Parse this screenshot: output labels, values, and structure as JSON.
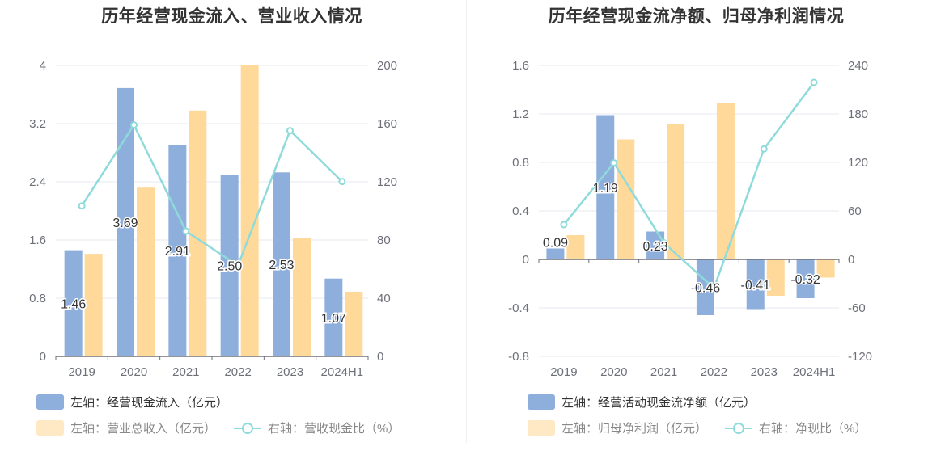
{
  "chart_data": [
    {
      "type": "bar",
      "title": "历年经营现金流入、营业收入情况",
      "categories": [
        "2019",
        "2020",
        "2021",
        "2022",
        "2023",
        "2024H1"
      ],
      "left_axis": {
        "ylim": [
          0,
          4
        ],
        "ticks": [
          "0",
          "0.8",
          "1.6",
          "2.4",
          "3.2",
          "4"
        ]
      },
      "right_axis": {
        "ylim": [
          0,
          200
        ],
        "ticks": [
          "0",
          "40",
          "80",
          "120",
          "160",
          "200"
        ]
      },
      "series": [
        {
          "name": "左轴：经营现金流入（亿元）",
          "kind": "bar",
          "axis": "left",
          "color": "#8eaedc",
          "values": [
            1.46,
            3.69,
            2.91,
            2.5,
            2.53,
            1.07
          ],
          "labels": [
            "1.46",
            "3.69",
            "2.91",
            "2.50",
            "2.53",
            "1.07"
          ]
        },
        {
          "name": "左轴：营业总收入（亿元）",
          "kind": "bar",
          "axis": "left",
          "color": "#ffd99a",
          "values": [
            1.41,
            2.32,
            3.38,
            4.0,
            1.63,
            0.89
          ]
        },
        {
          "name": "右轴：营收现金比（%）",
          "kind": "line",
          "axis": "right",
          "color": "#8fdada",
          "values": [
            103.5,
            159.1,
            86.1,
            62.5,
            155.2,
            120.2
          ]
        }
      ],
      "grid": true,
      "legend_position": "bottom-left"
    },
    {
      "type": "bar",
      "title": "历年经营现金流净额、归母净利润情况",
      "categories": [
        "2019",
        "2020",
        "2021",
        "2022",
        "2023",
        "2024H1"
      ],
      "left_axis": {
        "ylim": [
          -0.8,
          1.6
        ],
        "ticks": [
          "-0.8",
          "-0.4",
          "0",
          "0.4",
          "0.8",
          "1.2",
          "1.6"
        ]
      },
      "right_axis": {
        "ylim": [
          -120,
          240
        ],
        "ticks": [
          "-120",
          "-60",
          "0",
          "60",
          "120",
          "180",
          "240"
        ]
      },
      "series": [
        {
          "name": "左轴：经营活动现金流净额（亿元）",
          "kind": "bar",
          "axis": "left",
          "color": "#8eaedc",
          "values": [
            0.09,
            1.19,
            0.23,
            -0.46,
            -0.41,
            -0.32
          ],
          "labels": [
            "0.09",
            "1.19",
            "0.23",
            "-0.46",
            "-0.41",
            "-0.32"
          ]
        },
        {
          "name": "左轴：归母净利润（亿元）",
          "kind": "bar",
          "axis": "left",
          "color": "#ffd99a",
          "values": [
            0.2,
            0.99,
            1.12,
            1.29,
            -0.3,
            -0.15
          ]
        },
        {
          "name": "右轴：净现比（%）",
          "kind": "line",
          "axis": "right",
          "color": "#8fdada",
          "values": [
            43.0,
            119.4,
            20.5,
            -35.7,
            136.7,
            219.0
          ]
        }
      ],
      "grid": true,
      "legend_position": "bottom-left"
    }
  ]
}
